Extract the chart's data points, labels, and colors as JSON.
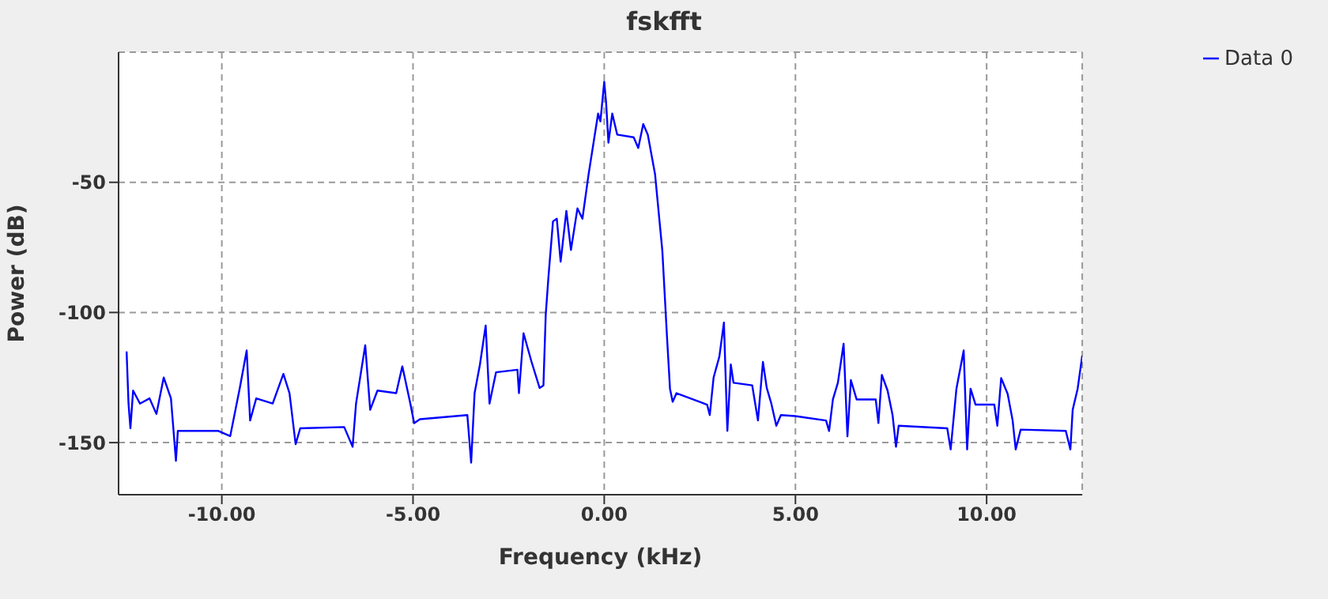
{
  "chart_data": {
    "type": "line",
    "title": "fskfft",
    "xlabel": "Frequency (kHz)",
    "ylabel": "Power (dB)",
    "xlim": [
      -12.7,
      12.5
    ],
    "ylim": [
      -170,
      0
    ],
    "xticks": [
      {
        "value": -10,
        "label": "-10.00"
      },
      {
        "value": -5,
        "label": "-5.00"
      },
      {
        "value": 0,
        "label": "0.00"
      },
      {
        "value": 5,
        "label": "5.00"
      },
      {
        "value": 10,
        "label": "10.00"
      }
    ],
    "yticks": [
      -50,
      -100,
      -150
    ],
    "grid": true,
    "legend": "top right",
    "marker": "none",
    "line_style": "solid",
    "x": [
      -12.49,
      -12.44,
      -12.39,
      -12.32,
      -12.14,
      -11.89,
      -11.71,
      -11.52,
      -11.33,
      -11.2,
      -11.15,
      -10.77,
      -10.09,
      -9.78,
      -9.53,
      -9.35,
      -9.26,
      -9.1,
      -8.67,
      -8.39,
      -8.23,
      -8.07,
      -7.95,
      -6.8,
      -6.58,
      -6.49,
      -6.25,
      -6.12,
      -5.93,
      -5.44,
      -5.28,
      -5.07,
      -4.97,
      -4.82,
      -3.58,
      -3.48,
      -3.39,
      -3.25,
      -3.1,
      -3.0,
      -2.83,
      -2.27,
      -2.23,
      -2.11,
      -1.9,
      -1.69,
      -1.59,
      -1.53,
      -1.46,
      -1.34,
      -1.24,
      -1.14,
      -0.99,
      -0.87,
      -0.7,
      -0.57,
      -0.41,
      -0.16,
      -0.1,
      0.0,
      0.05,
      0.11,
      0.21,
      0.34,
      0.77,
      0.89,
      1.02,
      1.14,
      1.33,
      1.52,
      1.64,
      1.72,
      1.79,
      1.89,
      2.69,
      2.76,
      2.86,
      3.01,
      3.13,
      3.22,
      3.31,
      3.38,
      3.87,
      4.02,
      4.15,
      4.25,
      4.37,
      4.5,
      4.62,
      4.99,
      5.8,
      5.88,
      5.98,
      6.11,
      6.26,
      6.36,
      6.45,
      6.6,
      7.1,
      7.17,
      7.26,
      7.41,
      7.54,
      7.63,
      7.7,
      8.97,
      9.06,
      9.21,
      9.4,
      9.49,
      9.58,
      9.71,
      10.2,
      10.28,
      10.38,
      10.55,
      10.68,
      10.76,
      10.89,
      12.07,
      12.19,
      12.25,
      12.38,
      12.5
    ],
    "series": [
      {
        "name": "Data 0",
        "color": "#0000ff",
        "values": [
          -115,
          -135,
          -144.5,
          -130,
          -135,
          -133,
          -139,
          -125,
          -133,
          -157,
          -145.5,
          -145.5,
          -145.5,
          -147.5,
          -129,
          -114.6,
          -141.5,
          -133,
          -135,
          -123.6,
          -131,
          -150.6,
          -144.5,
          -144,
          -151.6,
          -135,
          -112.6,
          -137.4,
          -130,
          -131,
          -120.7,
          -135,
          -142.5,
          -141,
          -139.4,
          -157.7,
          -131,
          -120,
          -105,
          -135,
          -123,
          -122,
          -131,
          -108,
          -119,
          -129,
          -128,
          -101,
          -86.6,
          -65,
          -64,
          -80.5,
          -61,
          -76,
          -60,
          -64,
          -47,
          -23.6,
          -26.6,
          -11.4,
          -19.5,
          -34.8,
          -23.6,
          -31.7,
          -32.7,
          -36.8,
          -27.6,
          -31.7,
          -47,
          -76.4,
          -109,
          -129.3,
          -134.3,
          -131,
          -135.4,
          -139.4,
          -125,
          -117,
          -103.9,
          -145.5,
          -120,
          -127,
          -128,
          -141.5,
          -119,
          -129,
          -135,
          -143.5,
          -139.4,
          -139.8,
          -141.5,
          -145.5,
          -133.4,
          -127,
          -112,
          -147.6,
          -126,
          -133.4,
          -133.4,
          -142.5,
          -124,
          -130,
          -139.4,
          -151.6,
          -143.5,
          -144.5,
          -152.6,
          -129.3,
          -114.6,
          -152.6,
          -129.3,
          -135.4,
          -135.4,
          -143.5,
          -125.2,
          -131.3,
          -141.5,
          -152.6,
          -145,
          -145.5,
          -152.6,
          -137.4,
          -129.3,
          -116.6
        ]
      }
    ]
  }
}
